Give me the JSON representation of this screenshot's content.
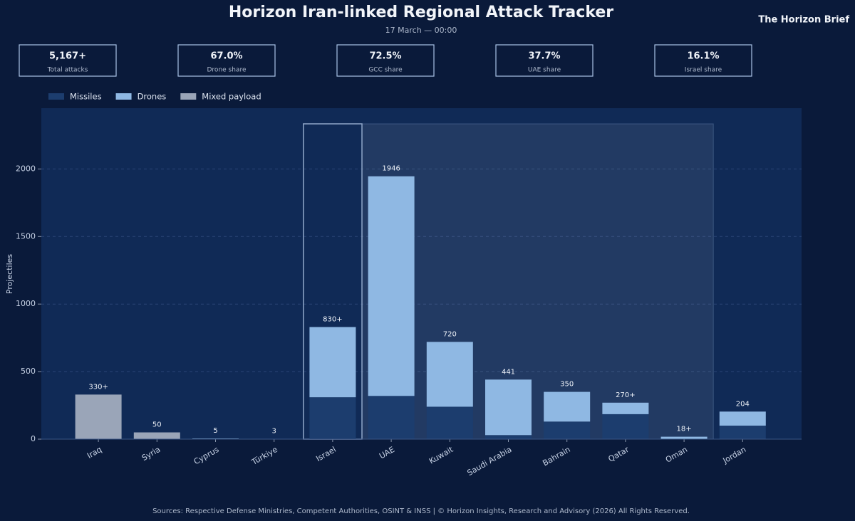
{
  "brand": "The Horizon Brief",
  "kpis": [
    {
      "value": "5,167+",
      "label": "Total attacks"
    },
    {
      "value": "67.0%",
      "label": "Drone share"
    },
    {
      "value": "72.5%",
      "label": "GCC share"
    },
    {
      "value": "37.7%",
      "label": "UAE share"
    },
    {
      "value": "16.1%",
      "label": "Israel share"
    }
  ],
  "chart_data": {
    "type": "stacked-bar",
    "title": "Horizon Iran-linked Regional Attack Tracker",
    "subtitle": "17 March — 00:00",
    "y_label": "Projectiles",
    "categories": [
      "Iraq",
      "Syria",
      "Cyprus",
      "Türkiye",
      "Israel",
      "UAE",
      "Kuwait",
      "Saudi Arabia",
      "Bahrain",
      "Qatar",
      "Oman",
      "Jordan"
    ],
    "series": [
      {
        "name": "Missiles",
        "color": "#1c3d6e",
        "values": [
          null,
          null,
          null,
          3,
          310,
          320,
          240,
          30,
          130,
          185,
          null,
          100
        ]
      },
      {
        "name": "Drones",
        "color": "#8fb8e3",
        "values": [
          null,
          null,
          5,
          null,
          520,
          1626,
          480,
          411,
          220,
          85,
          18,
          104
        ]
      },
      {
        "name": "Mixed payload",
        "color": "#9aa5b8",
        "values": [
          330,
          50,
          null,
          null,
          null,
          null,
          null,
          null,
          null,
          null,
          null,
          null
        ]
      }
    ],
    "totals": {
      "values": [
        330,
        50,
        5,
        3,
        830,
        1946,
        720,
        441,
        350,
        270,
        18,
        204
      ],
      "value_labels": [
        "330+",
        "50",
        "5",
        "3",
        "830+",
        "1946",
        "720",
        "441",
        "350",
        "270+",
        "18+",
        "204"
      ]
    },
    "ylim": [
      0,
      2450
    ],
    "yticks": [
      0,
      500,
      1000,
      1500,
      2000
    ],
    "grid": true,
    "legend": "top-left",
    "source": "Sources: Respective Defense Ministries, Competent Authorities, OSINT & INSS | © Horizon Insights, Research and Advisory (2026) All Rights Reserved."
  }
}
